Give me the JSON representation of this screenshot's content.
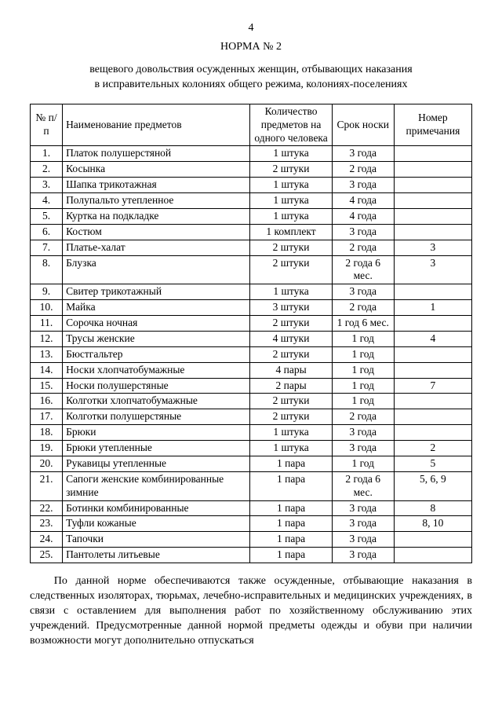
{
  "page_number": "4",
  "title": "НОРМА № 2",
  "subtitle_line1": "вещевого довольствия осужденных женщин, отбывающих наказания",
  "subtitle_line2": "в исправительных колониях общего режима, колониях-поселениях",
  "headers": {
    "num": "№ п/п",
    "name": "Наименование предметов",
    "qty": "Количество предметов на одного человека",
    "term": "Срок носки",
    "note": "Номер примечания"
  },
  "rows": [
    {
      "n": "1.",
      "name": "Платок полушерстяной",
      "qty": "1 штука",
      "term": "3 года",
      "note": ""
    },
    {
      "n": "2.",
      "name": "Косынка",
      "qty": "2 штуки",
      "term": "2 года",
      "note": ""
    },
    {
      "n": "3.",
      "name": "Шапка трикотажная",
      "qty": "1 штука",
      "term": "3 года",
      "note": ""
    },
    {
      "n": "4.",
      "name": "Полупальто утепленное",
      "qty": "1 штука",
      "term": "4 года",
      "note": ""
    },
    {
      "n": "5.",
      "name": "Куртка на подкладке",
      "qty": "1 штука",
      "term": "4 года",
      "note": ""
    },
    {
      "n": "6.",
      "name": "Костюм",
      "qty": "1 комплект",
      "term": "3 года",
      "note": ""
    },
    {
      "n": "7.",
      "name": "Платье-халат",
      "qty": "2 штуки",
      "term": "2 года",
      "note": "3"
    },
    {
      "n": "8.",
      "name": "Блузка",
      "qty": "2 штуки",
      "term": "2 года 6 мес.",
      "note": "3"
    },
    {
      "n": "9.",
      "name": "Свитер трикотажный",
      "qty": "1 штука",
      "term": "3 года",
      "note": ""
    },
    {
      "n": "10.",
      "name": "Майка",
      "qty": "3 штуки",
      "term": "2 года",
      "note": "1"
    },
    {
      "n": "11.",
      "name": "Сорочка ночная",
      "qty": "2 штуки",
      "term": "1 год 6 мес.",
      "note": ""
    },
    {
      "n": "12.",
      "name": "Трусы женские",
      "qty": "4 штуки",
      "term": "1 год",
      "note": "4"
    },
    {
      "n": "13.",
      "name": "Бюстгальтер",
      "qty": "2 штуки",
      "term": "1 год",
      "note": ""
    },
    {
      "n": "14.",
      "name": "Носки хлопчатобумажные",
      "qty": "4 пары",
      "term": "1 год",
      "note": ""
    },
    {
      "n": "15.",
      "name": "Носки полушерстяные",
      "qty": "2 пары",
      "term": "1 год",
      "note": "7"
    },
    {
      "n": "16.",
      "name": "Колготки хлопчатобумажные",
      "qty": "2 штуки",
      "term": "1 год",
      "note": ""
    },
    {
      "n": "17.",
      "name": "Колготки полушерстяные",
      "qty": "2 штуки",
      "term": "2 года",
      "note": ""
    },
    {
      "n": "18.",
      "name": "Брюки",
      "qty": "1 штука",
      "term": "3 года",
      "note": ""
    },
    {
      "n": "19.",
      "name": "Брюки утепленные",
      "qty": "1 штука",
      "term": "3 года",
      "note": "2"
    },
    {
      "n": "20.",
      "name": "Рукавицы утепленные",
      "qty": "1 пара",
      "term": "1 год",
      "note": "5"
    },
    {
      "n": "21.",
      "name": "Сапоги женские комбинированные зимние",
      "qty": "1 пара",
      "term": "2 года 6 мес.",
      "note": "5, 6, 9"
    },
    {
      "n": "22.",
      "name": "Ботинки комбинированные",
      "qty": "1 пара",
      "term": "3 года",
      "note": "8"
    },
    {
      "n": "23.",
      "name": "Туфли кожаные",
      "qty": "1 пара",
      "term": "3 года",
      "note": "8, 10"
    },
    {
      "n": "24.",
      "name": "Тапочки",
      "qty": "1 пара",
      "term": "3 года",
      "note": ""
    },
    {
      "n": "25.",
      "name": "Пантолеты литьевые",
      "qty": "1 пара",
      "term": "3 года",
      "note": ""
    }
  ],
  "footnote": "По данной норме обеспечиваются также осужденные, отбывающие наказания в следственных изоляторах, тюрьмах, лечебно-исправительных и медицинских учреждениях, в связи с оставлением для выполнения работ по хозяйственному обслуживанию этих учреждений. Предусмотренные данной нормой предметы одежды и обуви при наличии возможности могут дополнительно отпускаться"
}
